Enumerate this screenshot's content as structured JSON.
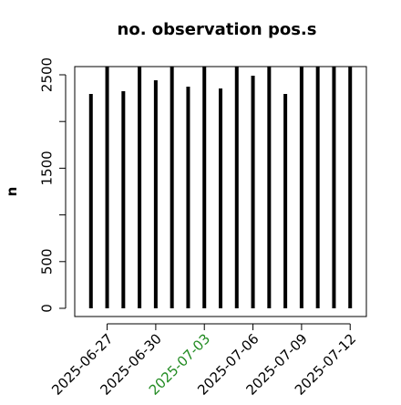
{
  "chart_data": {
    "type": "h",
    "title": "no. observation pos.s",
    "y_label": "n",
    "x": [
      "2025-06-26",
      "2025-06-27",
      "2025-06-28",
      "2025-06-29",
      "2025-06-30",
      "2025-07-01",
      "2025-07-02",
      "2025-07-03",
      "2025-07-04",
      "2025-07-05",
      "2025-07-06",
      "2025-07-07",
      "2025-07-08",
      "2025-07-09",
      "2025-07-10",
      "2025-07-11",
      "2025-07-12"
    ],
    "values": [
      2295,
      2700,
      2324,
      2700,
      2441,
      2700,
      2373,
      2700,
      2353,
      2700,
      2490,
      2700,
      2295,
      2700,
      2700,
      2700,
      2700
    ],
    "color": "#000000",
    "xlim": [
      "2025-06-25",
      "2025-07-13"
    ],
    "xticks": [
      "2025-06-27",
      "2025-06-30",
      "2025-07-03",
      "2025-07-06",
      "2025-07-09",
      "2025-07-12"
    ],
    "xtick_colors": [
      "#000000",
      "#000000",
      "#228b22",
      "#000000",
      "#000000",
      "#000000"
    ],
    "ylim": [
      -88,
      2588
    ],
    "yticks": [
      0,
      500,
      1500,
      2500
    ],
    "y_unlabeled_ticks": [
      1000,
      2000
    ]
  }
}
